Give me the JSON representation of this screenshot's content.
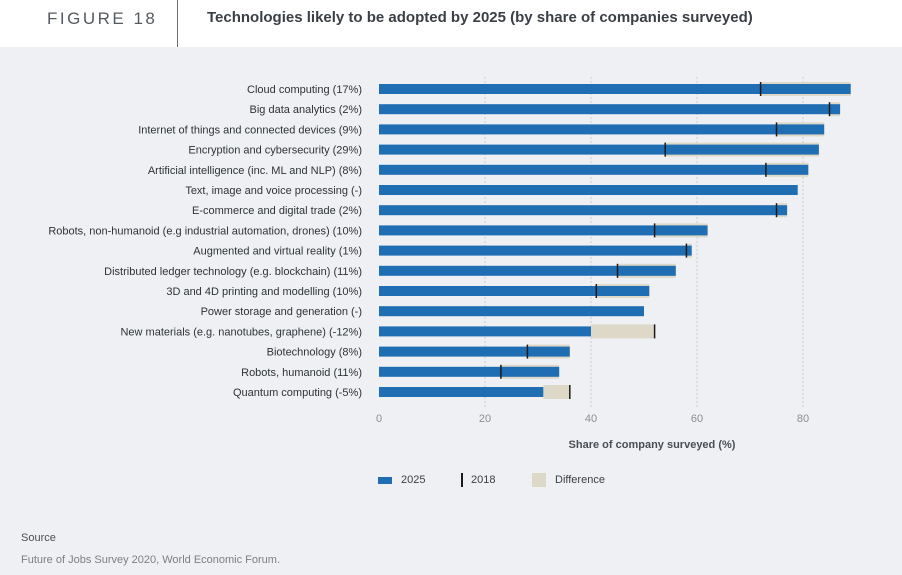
{
  "header": {
    "figure_label": "FIGURE 18",
    "title": "Technologies likely to be adopted by 2025 (by share of companies surveyed)"
  },
  "legend": {
    "items": [
      "2025",
      "2018",
      "Difference"
    ]
  },
  "source": {
    "title": "Source",
    "text": "Future of Jobs Survey 2020, World Economic Forum."
  },
  "colors": {
    "bar_2025": "#1f6db3",
    "difference": "#ddd8c8",
    "marker_2018": "#1a1a1a",
    "gridline": "#c9ccd1"
  },
  "chart_data": {
    "type": "bar",
    "orientation": "horizontal",
    "xlabel": "Share of company surveyed (%)",
    "xlim": [
      0,
      100
    ],
    "xticks": [
      0,
      20,
      40,
      60,
      80
    ],
    "grid": true,
    "legend_position": "bottom",
    "categories": [
      "Cloud computing (17%)",
      "Big data analytics (2%)",
      "Internet of things and connected devices (9%)",
      "Encryption and cybersecurity (29%)",
      "Artificial intelligence (inc. ML and NLP) (8%)",
      "Text, image and voice processing (-)",
      "E-commerce and digital trade (2%)",
      "Robots, non-humanoid (e.g industrial automation, drones) (10%)",
      "Augmented and virtual reality (1%)",
      "Distributed ledger technology (e.g. blockchain) (11%)",
      "3D and 4D printing and modelling (10%)",
      "Power storage and generation (-)",
      "New materials (e.g. nanotubes, graphene) (-12%)",
      "Biotechnology (8%)",
      "Robots, humanoid (11%)",
      "Quantum computing (-5%)"
    ],
    "series": [
      {
        "name": "2025",
        "values": [
          89,
          87,
          84,
          83,
          81,
          79,
          77,
          62,
          59,
          56,
          51,
          50,
          40,
          36,
          34,
          31
        ]
      },
      {
        "name": "2018",
        "values": [
          72,
          85,
          75,
          54,
          73,
          null,
          75,
          52,
          58,
          45,
          41,
          null,
          52,
          28,
          23,
          36
        ]
      }
    ]
  }
}
